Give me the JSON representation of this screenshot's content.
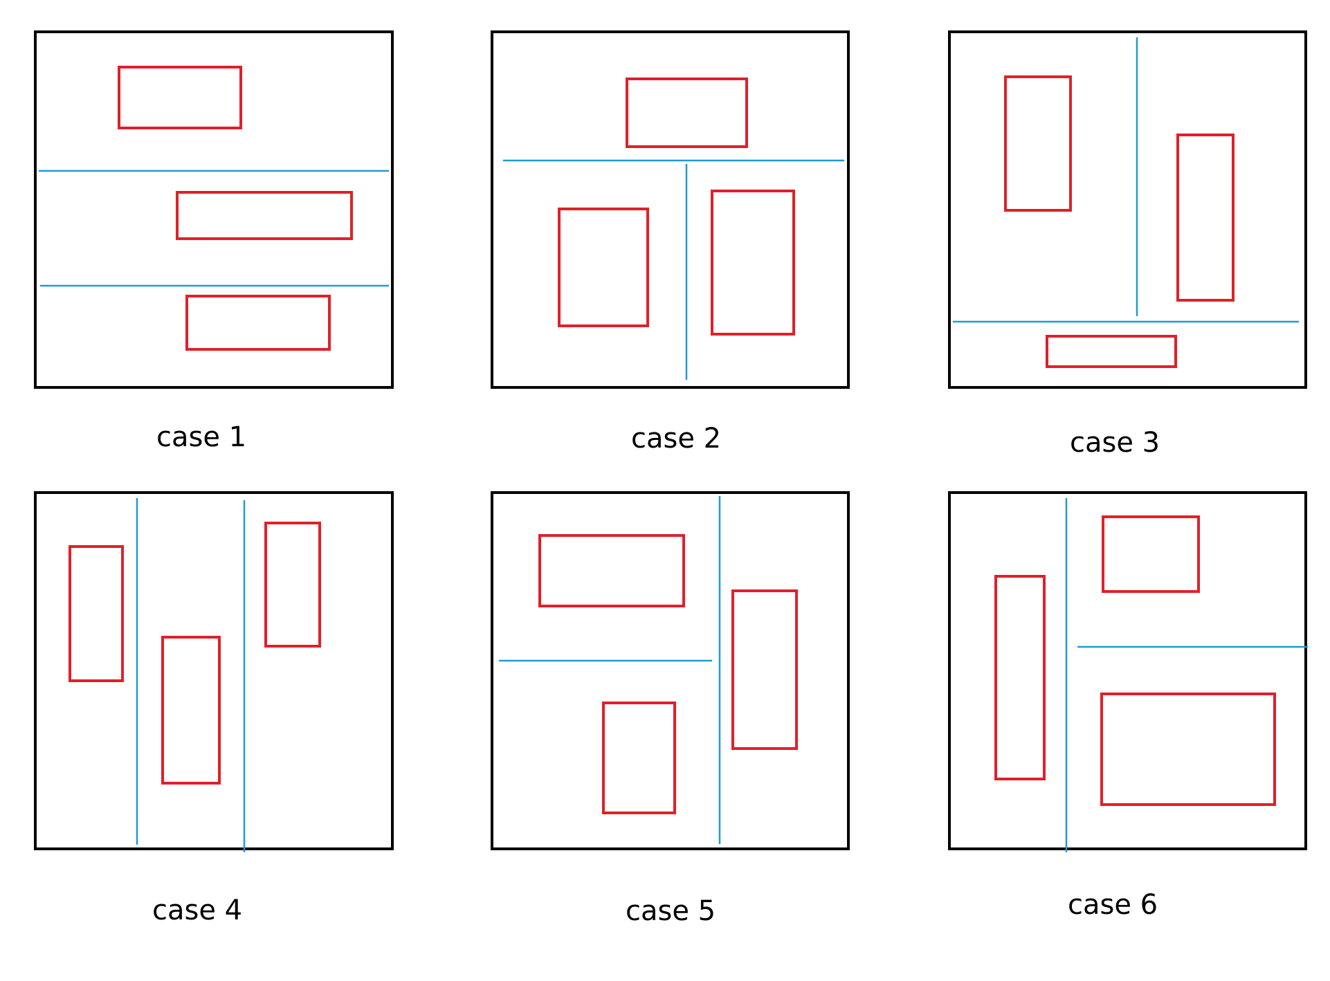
{
  "diagram": {
    "colors": {
      "frame": "#000000",
      "box": "#e0202a",
      "split_line": "#1f9ad6",
      "background": "#ffffff"
    },
    "cases": [
      {
        "label": "case 1",
        "box_count": 3,
        "split_count": 2
      },
      {
        "label": "case 2",
        "box_count": 3,
        "split_count": 2
      },
      {
        "label": "case 3",
        "box_count": 3,
        "split_count": 2
      },
      {
        "label": "case 4",
        "box_count": 3,
        "split_count": 2
      },
      {
        "label": "case 5",
        "box_count": 3,
        "split_count": 2
      },
      {
        "label": "case 6",
        "box_count": 3,
        "split_count": 2
      }
    ]
  }
}
